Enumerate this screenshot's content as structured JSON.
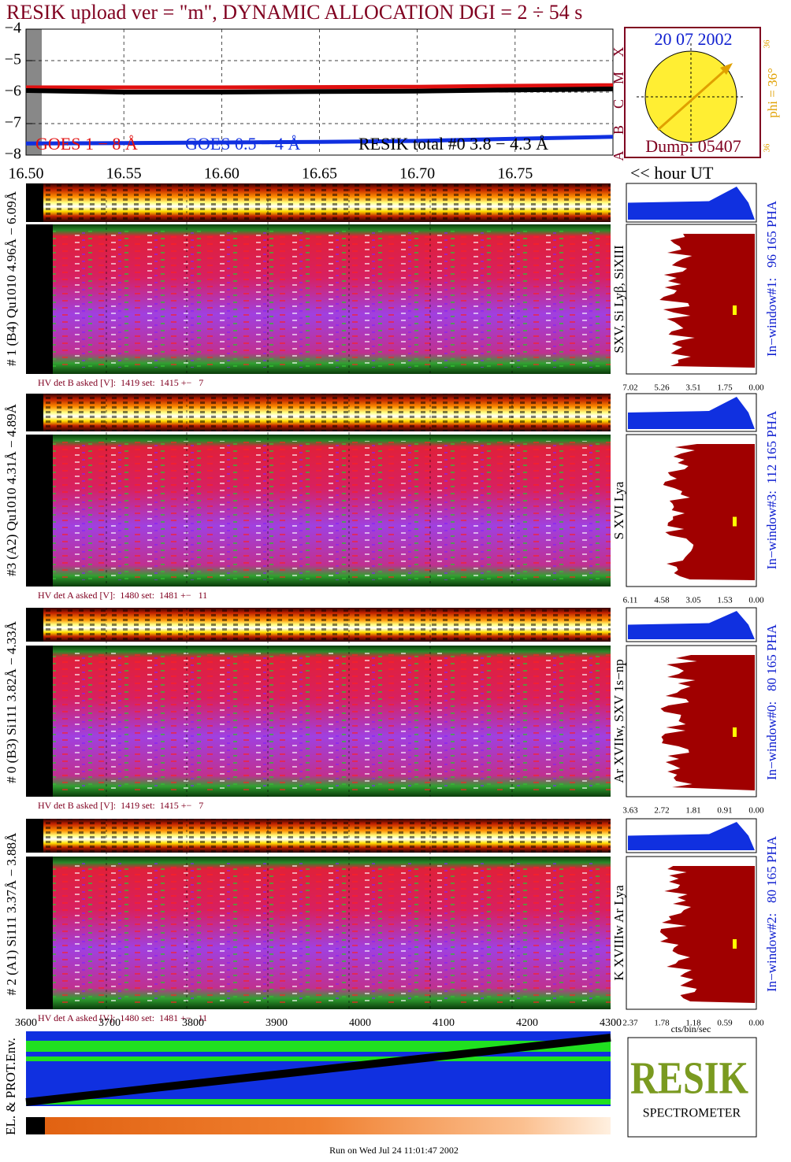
{
  "title": "RESIK upload ver = \"m\", DYNAMIC ALLOCATION  DGI =   2 ÷  54 s",
  "chart_data": {
    "type": "line",
    "x": [
      16.5,
      16.55,
      16.6,
      16.65,
      16.7,
      16.75,
      16.8
    ],
    "xlim": [
      16.5,
      16.8
    ],
    "xticks": [
      {
        "value": 16.5,
        "label": "16.50"
      },
      16.55,
      {
        "value": 16.6,
        "label": "16.60"
      },
      16.65,
      {
        "value": 16.7,
        "label": "16.70"
      },
      16.75
    ],
    "ylim": [
      -8,
      -4
    ],
    "yticks": [
      {
        "value": -8,
        "label": "−8"
      },
      {
        "value": -7,
        "label": "−7"
      },
      {
        "value": -6,
        "label": "−6"
      },
      {
        "value": -5,
        "label": "−5"
      },
      {
        "value": -4,
        "label": "−4"
      }
    ],
    "x_label": "<< hour UT",
    "grid": true,
    "series": [
      {
        "name": "GOES 1 − 8 Å",
        "color": "#e01010",
        "values": [
          -5.85,
          -5.85,
          -5.85,
          -5.84,
          -5.83,
          -5.8,
          -5.78
        ]
      },
      {
        "name": "GOES 0.5 − 4 Å",
        "color": "#1030e0",
        "values": [
          -7.63,
          -7.62,
          -7.6,
          -7.58,
          -7.55,
          -7.48,
          -7.42
        ]
      },
      {
        "name": "RESIK total #0  3.8 − 4.3 Å",
        "color": "#000000",
        "values": [
          -5.95,
          -6.0,
          -6.0,
          -5.98,
          -5.97,
          -5.93,
          -5.9
        ]
      }
    ]
  },
  "sun": {
    "date": "20 07 2002",
    "phi": "phi = 36°",
    "phi_top": "36",
    "phi_bottom": "36",
    "dump": "Dump: 05407",
    "classes": [
      "A",
      "B",
      "C",
      "M",
      "X"
    ]
  },
  "channels": [
    {
      "label": "# 1 (B4) Qu1010 4.96Å − 6.09Å",
      "lines": "SXV, Si Lyβ, SiXIII",
      "hv": "HV det B asked [V]:  1419 set:  1415 +−   7",
      "window": "In−window#1:   96 165 PHA",
      "ticks": [
        "7.02",
        "5.26",
        "3.51",
        "1.75",
        "0.00"
      ]
    },
    {
      "label": "#3 (A2) Qu1010  4.31Å − 4.89Å",
      "lines": "S XVI Lya",
      "hv": "HV det A asked [V]:  1480 set:  1481 +−   11",
      "window": "In−window#3:  112 165 PHA",
      "ticks": [
        "6.11",
        "4.58",
        "3.05",
        "1.53",
        "0.00"
      ]
    },
    {
      "label": "# 0 (B3) Si111  3.82Å − 4.33Å",
      "lines": "Ar XVIIw,  SXV 1s−np",
      "hv": "HV det B asked [V]:  1419 set:  1415 +−   7",
      "window": "In−window#0:   80 165 PHA",
      "ticks": [
        "3.63",
        "2.72",
        "1.81",
        "0.91",
        "0.00"
      ]
    },
    {
      "label": "# 2 (A1) Si111  3.37Å − 3.88Å",
      "lines": "K XVIIIw  Ar Lya",
      "hv": "HV det A asked [V]:  1480 set:  1481 +−   11",
      "window": "In−window#2:   80 165 PHA",
      "ticks": [
        "2.37",
        "1.78",
        "1.18",
        "0.59",
        "0.00"
      ]
    }
  ],
  "env_axis_ticks": [
    3600,
    3700,
    3800,
    3900,
    4000,
    4100,
    4200,
    4300
  ],
  "env_label": "EL. & PROT.Env.",
  "hist_unit": "cts/bin/sec",
  "logo": {
    "name": "RESIK",
    "sub": "SPECTROMETER"
  },
  "footer": "Run on Wed Jul 24 11:01:47 2002"
}
